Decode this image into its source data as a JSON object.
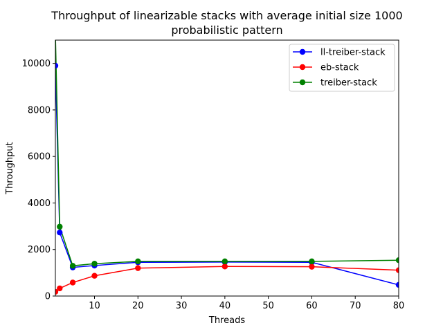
{
  "chart_data": {
    "type": "line",
    "title_line1": "Throughput of linearizable stacks with average initial size 1000",
    "title_line2": "probabilistic pattern",
    "xlabel": "Threads",
    "ylabel": "Throughput",
    "xlim": [
      1,
      80
    ],
    "ylim": [
      0,
      11000
    ],
    "xticks": [
      10,
      20,
      30,
      40,
      50,
      60,
      70,
      80
    ],
    "yticks": [
      0,
      2000,
      4000,
      6000,
      8000,
      10000
    ],
    "grid": false,
    "legend_position": "top-right",
    "x": [
      1,
      2,
      5,
      10,
      20,
      40,
      60,
      80
    ],
    "series": [
      {
        "name": "ll-treiber-stack",
        "color": "#0000ff",
        "values": [
          9900,
          2730,
          1230,
          1310,
          1450,
          1460,
          1450,
          480
        ]
      },
      {
        "name": "eb-stack",
        "color": "#ff0000",
        "values": [
          180,
          330,
          580,
          870,
          1200,
          1270,
          1260,
          1110
        ]
      },
      {
        "name": "treiber-stack",
        "color": "#008000",
        "values": [
          11300,
          2980,
          1300,
          1390,
          1490,
          1490,
          1490,
          1540
        ]
      }
    ]
  }
}
